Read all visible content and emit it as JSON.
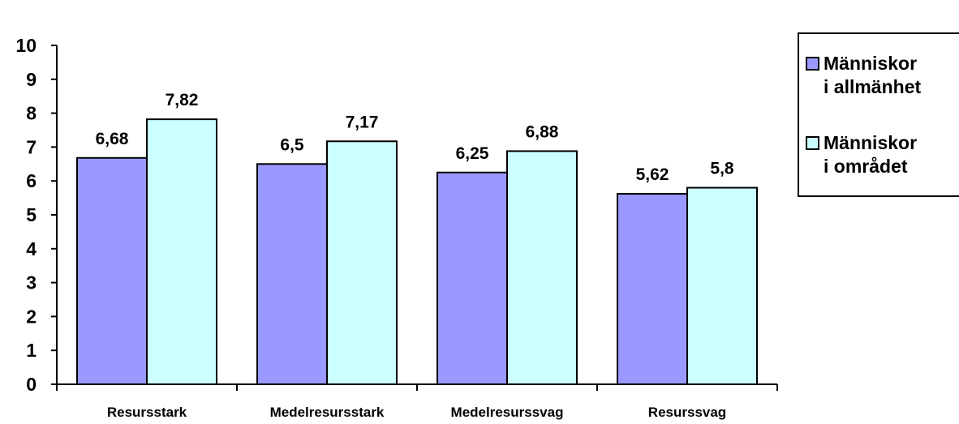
{
  "chart_data": {
    "type": "bar",
    "categories": [
      "Resursstark",
      "Medelresursstark",
      "Medelresurssvag",
      "Resurssvag"
    ],
    "series": [
      {
        "name": "Människor\ni allmänhet",
        "values": [
          6.68,
          6.5,
          6.25,
          5.62
        ],
        "labels": [
          "6,68",
          "6,5",
          "6,25",
          "5,62"
        ],
        "color": "#9999ff"
      },
      {
        "name": "Människor\ni området",
        "values": [
          7.82,
          7.17,
          6.88,
          5.8
        ],
        "labels": [
          "7,82",
          "7,17",
          "6,88",
          "5,8"
        ],
        "color": "#ccffff"
      }
    ],
    "ylim": [
      0,
      10
    ],
    "yticks": [
      "0",
      "1",
      "2",
      "3",
      "4",
      "5",
      "6",
      "7",
      "8",
      "9",
      "10"
    ],
    "title": "",
    "xlabel": "",
    "ylabel": "",
    "grid": false,
    "legend_position": "right"
  }
}
